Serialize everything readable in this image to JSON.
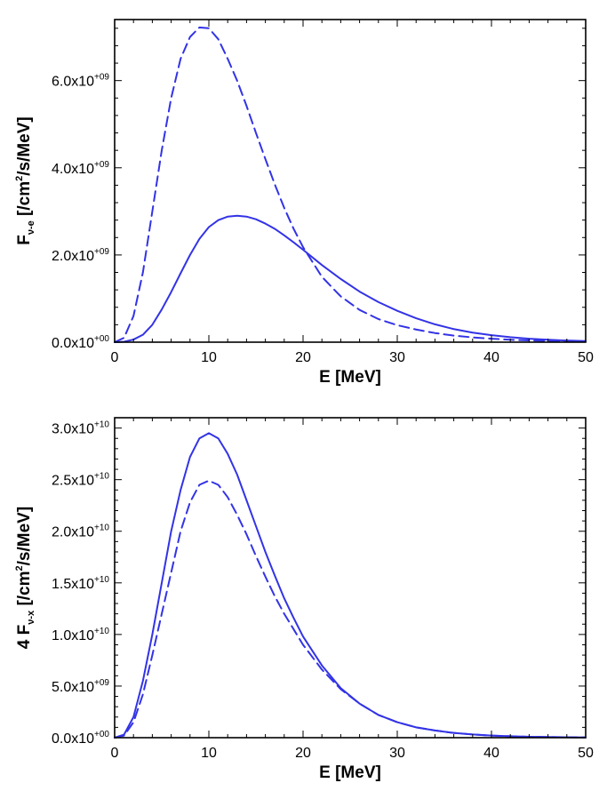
{
  "colors": {
    "series": "#3333e6",
    "axes": "#000000"
  },
  "chart_data": [
    {
      "type": "line",
      "xlabel": "E [MeV]",
      "ylabel": {
        "main": "F",
        "sub": "ν-e",
        "bracket_pre": " [/cm",
        "sup": "2",
        "bracket_post": "/s/MeV]"
      },
      "xlim": [
        0,
        50
      ],
      "ylim": [
        0,
        7400000000.0
      ],
      "xticks": [
        0,
        10,
        20,
        30,
        40,
        50
      ],
      "xtick_labels": [
        "0",
        "10",
        "20",
        "30",
        "40",
        "50"
      ],
      "yticks": [
        0,
        2000000000.0,
        4000000000.0,
        6000000000.0
      ],
      "ytick_labels": [
        {
          "mant": "0.0x10",
          "exp": "+00"
        },
        {
          "mant": "2.0x10",
          "exp": "+09"
        },
        {
          "mant": "4.0x10",
          "exp": "+09"
        },
        {
          "mant": "6.0x10",
          "exp": "+09"
        }
      ],
      "series": [
        {
          "style": "solid",
          "x": [
            0,
            1,
            2,
            3,
            4,
            5,
            6,
            7,
            8,
            9,
            10,
            11,
            12,
            13,
            14,
            15,
            16,
            17,
            18,
            19,
            20,
            22,
            24,
            26,
            28,
            30,
            32,
            34,
            36,
            38,
            40,
            42,
            44,
            46,
            48,
            50
          ],
          "y": [
            0,
            10000000.0,
            60000000.0,
            170000000.0,
            400000000.0,
            750000000.0,
            1150000000.0,
            1580000000.0,
            2000000000.0,
            2370000000.0,
            2640000000.0,
            2800000000.0,
            2880000000.0,
            2900000000.0,
            2880000000.0,
            2820000000.0,
            2720000000.0,
            2600000000.0,
            2450000000.0,
            2290000000.0,
            2120000000.0,
            1770000000.0,
            1450000000.0,
            1160000000.0,
            920000000.0,
            720000000.0,
            550000000.0,
            410000000.0,
            300000000.0,
            220000000.0,
            160000000.0,
            115000000.0,
            80000000.0,
            55000000.0,
            38000000.0,
            26000000.0
          ]
        },
        {
          "style": "dashed",
          "x": [
            0,
            1,
            2,
            3,
            4,
            5,
            6,
            7,
            8,
            9,
            10,
            11,
            12,
            13,
            14,
            15,
            16,
            17,
            18,
            19,
            20,
            22,
            24,
            26,
            28,
            30,
            32,
            34,
            36,
            38,
            40,
            42,
            44,
            46,
            48,
            50
          ],
          "y": [
            0,
            100000000.0,
            600000000.0,
            1600000000.0,
            3000000000.0,
            4400000000.0,
            5600000000.0,
            6500000000.0,
            7000000000.0,
            7220000000.0,
            7200000000.0,
            6950000000.0,
            6500000000.0,
            6000000000.0,
            5420000000.0,
            4800000000.0,
            4200000000.0,
            3620000000.0,
            3080000000.0,
            2600000000.0,
            2180000000.0,
            1500000000.0,
            1050000000.0,
            740000000.0,
            530000000.0,
            390000000.0,
            290000000.0,
            210000000.0,
            150000000.0,
            110000000.0,
            80000000.0,
            55000000.0,
            40000000.0,
            28000000.0,
            20000000.0,
            14000000.0
          ]
        }
      ]
    },
    {
      "type": "line",
      "xlabel": "E [MeV]",
      "ylabel": {
        "main": "4 F",
        "sub": "ν-x",
        "bracket_pre": " [/cm",
        "sup": "2",
        "bracket_post": "/s/MeV]"
      },
      "xlim": [
        0,
        50
      ],
      "ylim": [
        0,
        31000000000.0
      ],
      "xticks": [
        0,
        10,
        20,
        30,
        40,
        50
      ],
      "xtick_labels": [
        "0",
        "10",
        "20",
        "30",
        "40",
        "50"
      ],
      "yticks": [
        0,
        5000000000.0,
        10000000000.0,
        15000000000.0,
        20000000000.0,
        25000000000.0,
        30000000000.0
      ],
      "ytick_labels": [
        {
          "mant": "0.0x10",
          "exp": "+00"
        },
        {
          "mant": "5.0x10",
          "exp": "+09"
        },
        {
          "mant": "1.0x10",
          "exp": "+10"
        },
        {
          "mant": "1.5x10",
          "exp": "+10"
        },
        {
          "mant": "2.0x10",
          "exp": "+10"
        },
        {
          "mant": "2.5x10",
          "exp": "+10"
        },
        {
          "mant": "3.0x10",
          "exp": "+10"
        }
      ],
      "series": [
        {
          "style": "solid",
          "x": [
            0,
            1,
            2,
            3,
            4,
            5,
            6,
            7,
            8,
            9,
            10,
            11,
            12,
            13,
            14,
            15,
            16,
            17,
            18,
            19,
            20,
            22,
            24,
            26,
            28,
            30,
            32,
            34,
            36,
            38,
            40,
            42,
            44,
            46,
            48,
            50
          ],
          "y": [
            0,
            300000000.0,
            2000000000.0,
            5500000000.0,
            10000000000.0,
            15000000000.0,
            20000000000.0,
            24000000000.0,
            27200000000.0,
            29000000000.0,
            29500000000.0,
            29000000000.0,
            27500000000.0,
            25500000000.0,
            23000000000.0,
            20500000000.0,
            18000000000.0,
            15700000000.0,
            13500000000.0,
            11600000000.0,
            9800000000.0,
            7000000000.0,
            4800000000.0,
            3300000000.0,
            2200000000.0,
            1500000000.0,
            1000000000.0,
            700000000.0,
            460000000.0,
            310000000.0,
            200000000.0,
            135000000.0,
            90000000.0,
            60000000.0,
            40000000.0,
            26000000.0
          ]
        },
        {
          "style": "dashed",
          "x": [
            0,
            1,
            2,
            3,
            4,
            5,
            6,
            7,
            8,
            9,
            10,
            11,
            12,
            13,
            14,
            15,
            16,
            17,
            18,
            19,
            20,
            22,
            24,
            26,
            28,
            30,
            32,
            34,
            36,
            38,
            40,
            42,
            44,
            46,
            48,
            50
          ],
          "y": [
            0,
            200000000.0,
            1500000000.0,
            4200000000.0,
            8000000000.0,
            12000000000.0,
            16000000000.0,
            20000000000.0,
            22800000000.0,
            24500000000.0,
            24900000000.0,
            24500000000.0,
            23300000000.0,
            21600000000.0,
            19700000000.0,
            17600000000.0,
            15600000000.0,
            13700000000.0,
            12000000000.0,
            10500000000.0,
            9000000000.0,
            6600000000.0,
            4700000000.0,
            3300000000.0,
            2200000000.0,
            1500000000.0,
            1000000000.0,
            700000000.0,
            460000000.0,
            310000000.0,
            200000000.0,
            135000000.0,
            90000000.0,
            60000000.0,
            40000000.0,
            26000000.0
          ]
        }
      ]
    }
  ]
}
